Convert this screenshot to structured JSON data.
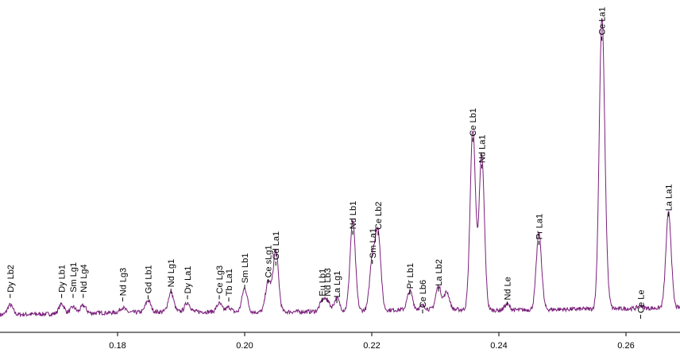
{
  "chart_data": {
    "type": "line",
    "title": "",
    "xlabel": "",
    "ylabel": "",
    "xlim": [
      0.1615,
      0.2685
    ],
    "ylim": [
      0,
      100
    ],
    "grid": false,
    "colors": {
      "line": "#7a1f7a",
      "axis": "#000000",
      "text": "#000000"
    },
    "x_ticks": [
      {
        "value": 0.18,
        "label": "0.18"
      },
      {
        "value": 0.2,
        "label": "0.20"
      },
      {
        "value": 0.22,
        "label": "0.22"
      },
      {
        "value": 0.24,
        "label": "0.24"
      },
      {
        "value": 0.26,
        "label": "0.26"
      }
    ],
    "baseline": [
      [
        0.1615,
        5.4
      ],
      [
        0.17,
        5.7
      ],
      [
        0.18,
        6.1
      ],
      [
        0.19,
        6.4
      ],
      [
        0.2,
        6.2
      ],
      [
        0.21,
        6.4
      ],
      [
        0.22,
        6.8
      ],
      [
        0.23,
        7.1
      ],
      [
        0.24,
        6.8
      ],
      [
        0.25,
        7.1
      ],
      [
        0.26,
        7.3
      ],
      [
        0.2685,
        7.6
      ]
    ],
    "peaks": [
      {
        "label": "Dy Lb2",
        "x": 0.1631,
        "height": 3.0,
        "label_height": 10.6
      },
      {
        "label": "Dy Lb1",
        "x": 0.1712,
        "height": 3.0,
        "label_height": 10.6
      },
      {
        "label": "Sm Lg1",
        "x": 0.173,
        "height": 2.0,
        "label_height": 10.6
      },
      {
        "label": "Nd Lg4",
        "x": 0.1746,
        "height": 2.4,
        "label_height": 10.6
      },
      {
        "label": "Nd Lg3",
        "x": 0.1808,
        "height": 1.5,
        "label_height": 9.5
      },
      {
        "label": "Gd Lb1",
        "x": 0.1848,
        "height": 3.6,
        "label_height": 10.2
      },
      {
        "label": "Nd Lg1",
        "x": 0.1884,
        "height": 6.0,
        "label_height": 12.2
      },
      {
        "label": "Dy La1",
        "x": 0.191,
        "height": 2.8,
        "label_height": 10.2
      },
      {
        "label": "Ce Lg3",
        "x": 0.196,
        "height": 2.6,
        "label_height": 10.2
      },
      {
        "label": "Tb La1",
        "x": 0.1975,
        "height": 1.5,
        "label_height": 9.5
      },
      {
        "label": "Sm Lb1",
        "x": 0.2,
        "height": 7.4,
        "label_height": 13.4
      },
      {
        "label": "Ce sLg1",
        "x": 0.2037,
        "height": 9.4,
        "label_height": 15.1
      },
      {
        "label": "Gd La1",
        "x": 0.2049,
        "height": 18.8,
        "label_height": 20.6
      },
      {
        "label": "Eu Lb1",
        "x": 0.2122,
        "height": 3.0,
        "label_height": 9.4
      },
      {
        "label": "Nd Lb3",
        "x": 0.213,
        "height": 3.0,
        "label_height": 9.4
      },
      {
        "label": "La Lg1",
        "x": 0.2145,
        "height": 4.0,
        "label_height": 9.0
      },
      {
        "label": "Nd Lb1",
        "x": 0.217,
        "height": 27.5,
        "label_height": 30.1
      },
      {
        "label": "Sm La1",
        "x": 0.2201,
        "height": 16.0,
        "label_height": 21.1
      },
      {
        "label": "Ce Lb2",
        "x": 0.221,
        "height": 23.6,
        "label_height": 29.9
      },
      {
        "label": "Pr Lb1",
        "x": 0.226,
        "height": 5.8,
        "label_height": 11.7
      },
      {
        "label": "Ce Lb6",
        "x": 0.228,
        "height": 1.2,
        "label_height": 5.8
      },
      {
        "label": "La Lb2",
        "x": 0.2305,
        "height": 7.2,
        "label_height": 12.6
      },
      {
        "label": "Ce Lb1",
        "x": 0.2359,
        "height": 55.6,
        "label_height": 58.7
      },
      {
        "label": "Nd La1",
        "x": 0.2373,
        "height": 47.6,
        "label_height": 50.5
      },
      {
        "label": "Nd Le",
        "x": 0.2413,
        "height": 1.8,
        "label_height": 8.2
      },
      {
        "label": "Pr La1",
        "x": 0.2463,
        "height": 23.5,
        "label_height": 26.9
      },
      {
        "label": "Ce La1",
        "x": 0.2562,
        "height": 86.8,
        "label_height": 89.9
      },
      {
        "label": "Ce Le",
        "x": 0.2623,
        "height": 0.8,
        "label_height": 4.2
      },
      {
        "label": "La La1",
        "x": 0.2667,
        "height": 29.3,
        "label_height": 35.7
      }
    ],
    "extra_peaks": [
      {
        "x": 0.2318,
        "height": 5.4
      },
      {
        "x": 0.2568,
        "height": 8.0
      }
    ]
  }
}
